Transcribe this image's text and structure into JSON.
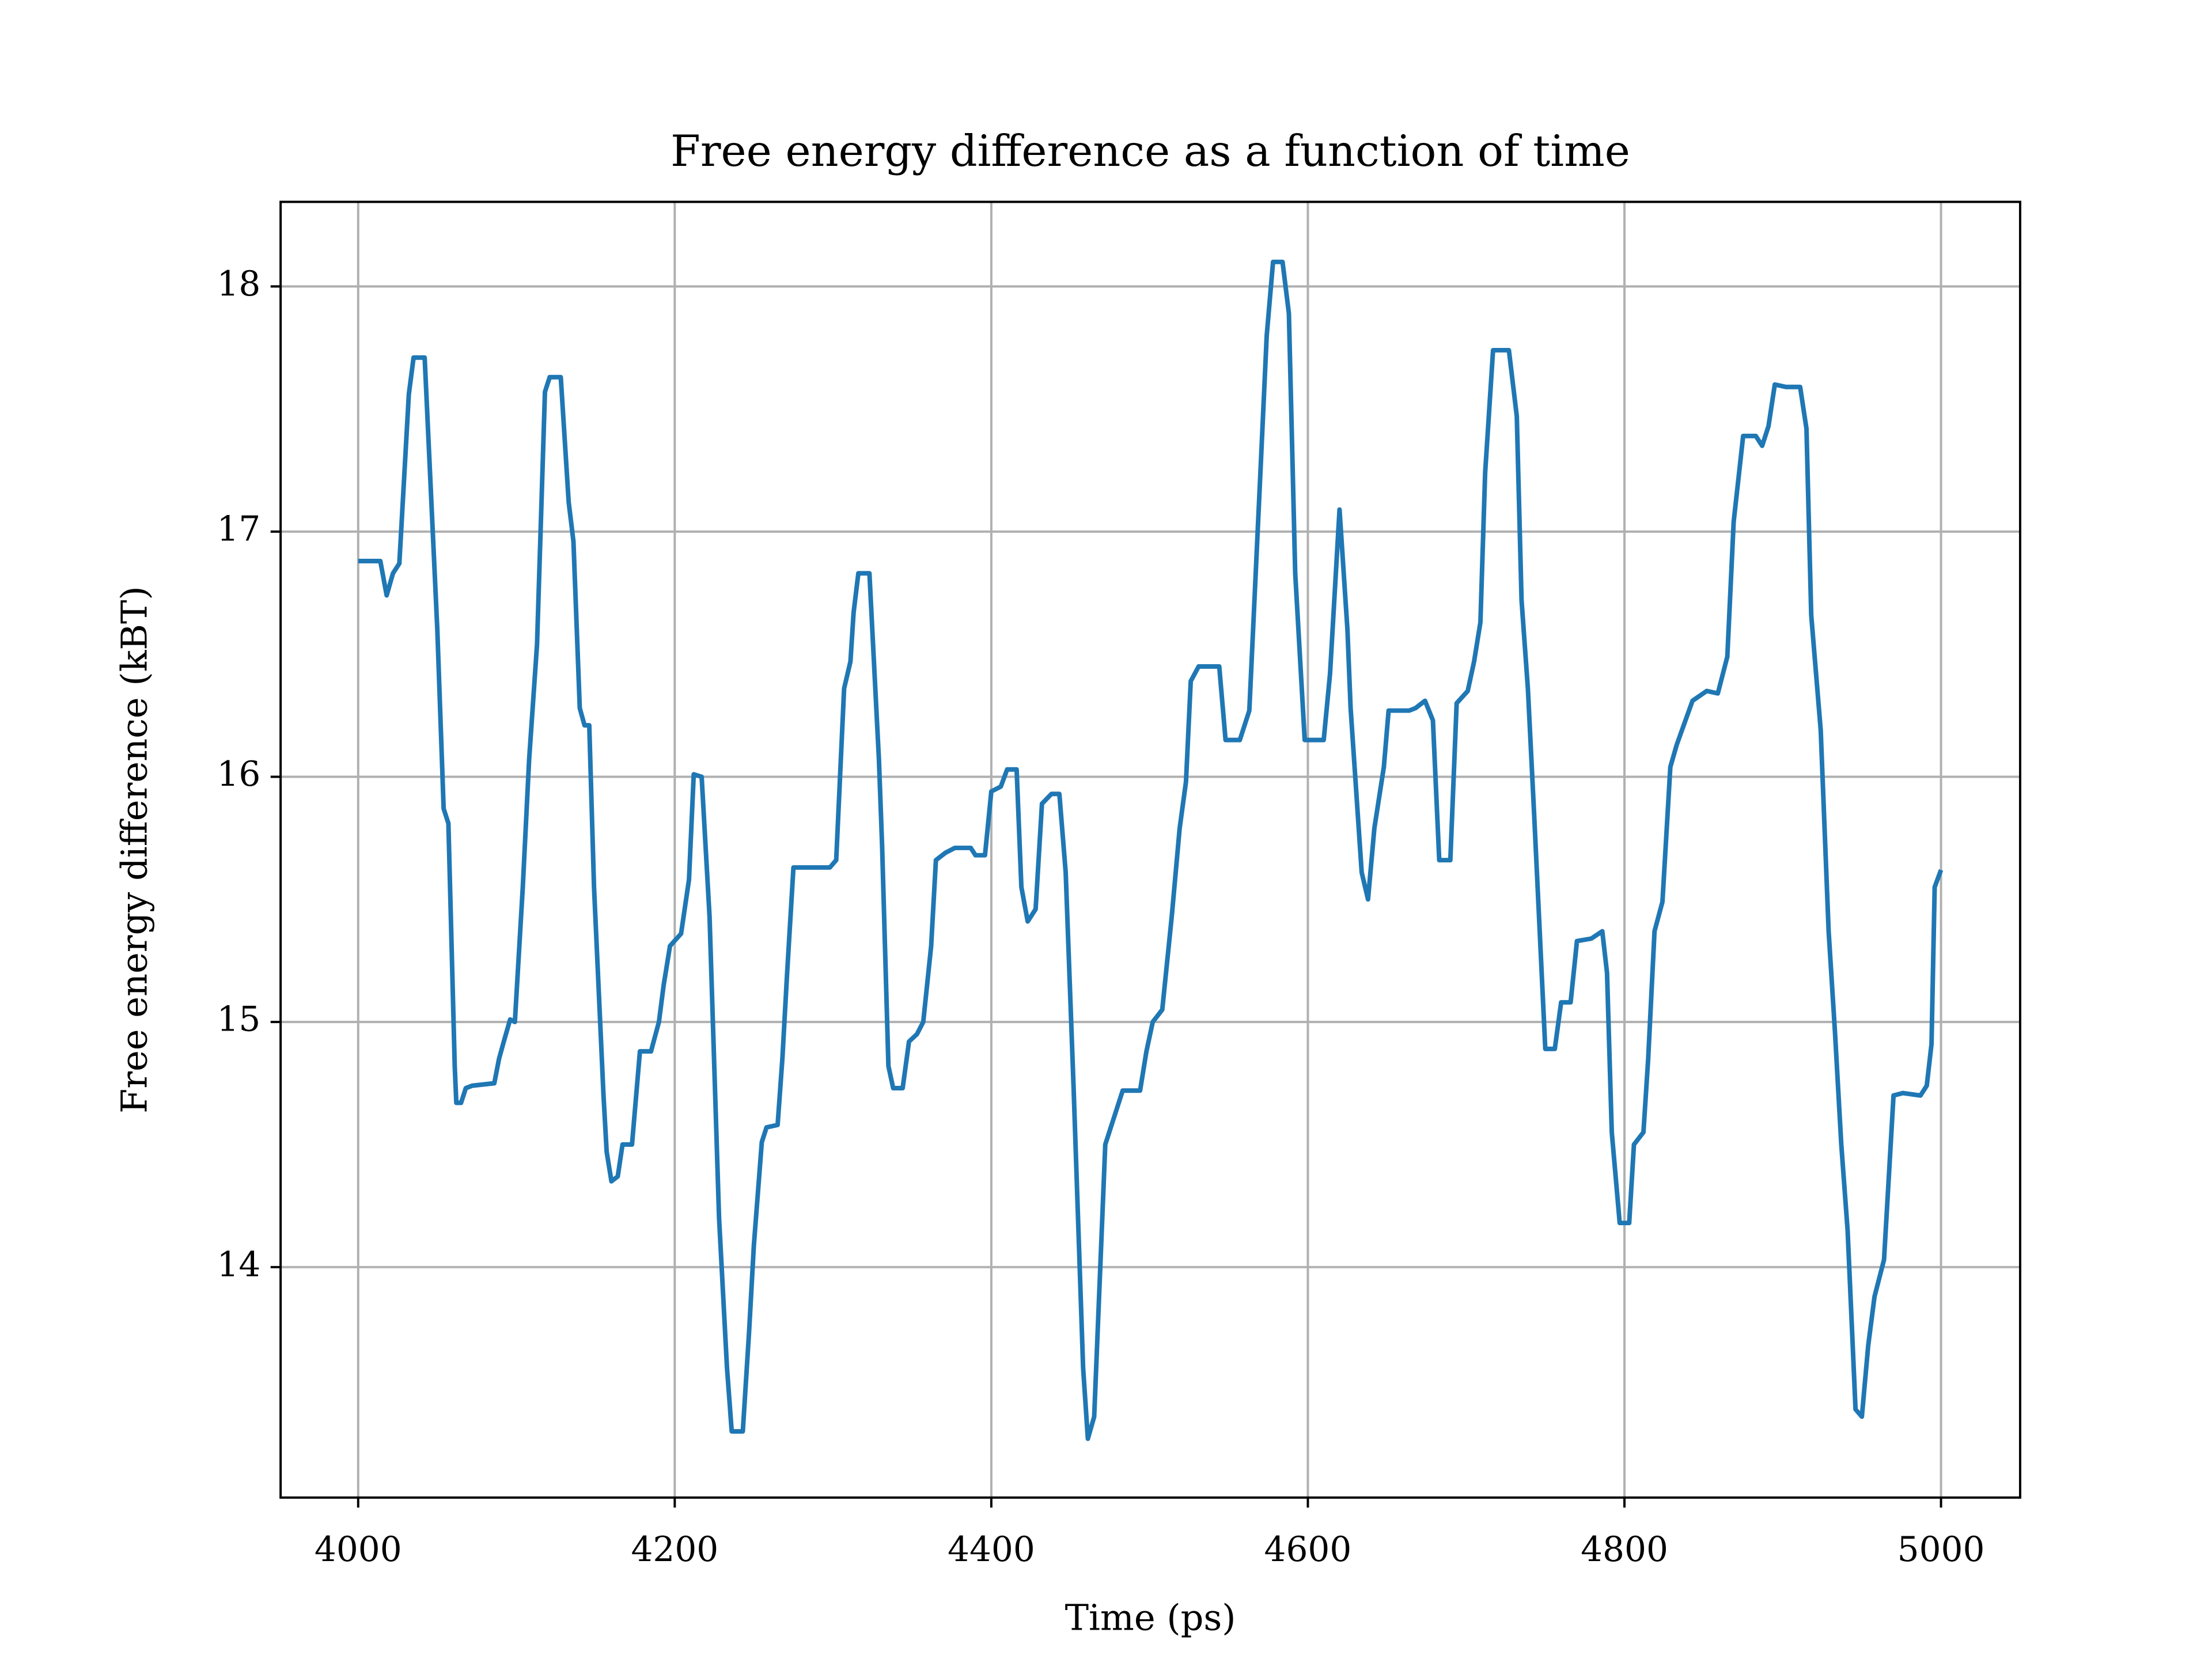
{
  "chart_data": {
    "type": "line",
    "title": "Free energy difference as a function of time",
    "xlabel": "Time (ps)",
    "ylabel": "Free energy difference (kBT)",
    "color": "#1f77b4",
    "grid": true,
    "xlim": [
      3951,
      5050
    ],
    "ylim": [
      13.06,
      18.345
    ],
    "xticks": [
      4000,
      4200,
      4400,
      4600,
      4800,
      5000
    ],
    "yticks": [
      14,
      15,
      16,
      17,
      18
    ],
    "x": [
      4000,
      4014,
      4018,
      4022,
      4026,
      4032,
      4035,
      4042,
      4050,
      4054,
      4057,
      4061,
      4062,
      4065,
      4068,
      4072,
      4086,
      4089,
      4092,
      4096,
      4099,
      4104,
      4108,
      4113,
      4118,
      4121,
      4128,
      4133,
      4136,
      4140,
      4143,
      4146,
      4149,
      4155,
      4157,
      4160,
      4164,
      4167,
      4173,
      4178,
      4185,
      4190,
      4193,
      4197,
      4204,
      4209,
      4212,
      4217,
      4222,
      4228,
      4233,
      4236,
      4243,
      4247,
      4250,
      4255,
      4258,
      4265,
      4268,
      4271,
      4275,
      4298,
      4302,
      4307,
      4311,
      4313,
      4316,
      4323,
      4329,
      4331,
      4335,
      4338,
      4344,
      4348,
      4353,
      4357,
      4362,
      4365,
      4371,
      4377,
      4387,
      4390,
      4396,
      4400,
      4406,
      4410,
      4416,
      4419,
      4423,
      4428,
      4432,
      4438,
      4443,
      4447,
      4452,
      4458,
      4461,
      4465,
      4472,
      4474,
      4479,
      4483,
      4494,
      4498,
      4502,
      4508,
      4514,
      4519,
      4523,
      4526,
      4531,
      4544,
      4548,
      4557,
      4563,
      4570,
      4574,
      4578,
      4584,
      4588,
      4592,
      4598,
      4610,
      4614,
      4620,
      4625,
      4627,
      4634,
      4638,
      4642,
      4648,
      4651,
      4664,
      4668,
      4674,
      4679,
      4683,
      4690,
      4694,
      4701,
      4705,
      4709,
      4712,
      4717,
      4727,
      4732,
      4735,
      4739,
      4743,
      4750,
      4756,
      4760,
      4766,
      4770,
      4779,
      4786,
      4789,
      4792,
      4797,
      4803,
      4806,
      4812,
      4815,
      4819,
      4824,
      4829,
      4833,
      4838,
      4843,
      4852,
      4859,
      4865,
      4869,
      4875,
      4883,
      4887,
      4891,
      4895,
      4902,
      4911,
      4915,
      4918,
      4924,
      4929,
      4933,
      4937,
      4941,
      4946,
      4950,
      4954,
      4958,
      4964,
      4970,
      4976,
      4987,
      4991,
      4994,
      4996,
      5000
    ],
    "values": [
      16.88,
      16.88,
      16.74,
      16.83,
      16.87,
      17.56,
      17.71,
      17.71,
      16.6,
      15.87,
      15.81,
      14.82,
      14.67,
      14.67,
      14.73,
      14.74,
      14.75,
      14.85,
      14.92,
      15.01,
      15.0,
      15.55,
      16.07,
      16.54,
      17.57,
      17.63,
      17.63,
      17.12,
      16.96,
      16.28,
      16.21,
      16.21,
      15.55,
      14.7,
      14.47,
      14.35,
      14.37,
      14.5,
      14.5,
      14.88,
      14.88,
      15.0,
      15.15,
      15.31,
      15.36,
      15.58,
      16.01,
      16.0,
      15.43,
      14.2,
      13.59,
      13.33,
      13.33,
      13.74,
      14.09,
      14.51,
      14.57,
      14.58,
      14.85,
      15.2,
      15.63,
      15.63,
      15.66,
      16.36,
      16.47,
      16.67,
      16.83,
      16.83,
      16.07,
      15.72,
      14.82,
      14.73,
      14.73,
      14.92,
      14.95,
      15.0,
      15.31,
      15.66,
      15.69,
      15.71,
      15.71,
      15.68,
      15.68,
      15.94,
      15.96,
      16.03,
      16.03,
      15.55,
      15.41,
      15.46,
      15.89,
      15.93,
      15.93,
      15.61,
      14.73,
      13.59,
      13.3,
      13.39,
      14.5,
      14.54,
      14.64,
      14.72,
      14.72,
      14.88,
      15.0,
      15.05,
      15.43,
      15.79,
      15.98,
      16.39,
      16.45,
      16.45,
      16.15,
      16.15,
      16.27,
      17.24,
      17.8,
      18.1,
      18.1,
      17.89,
      16.83,
      16.15,
      16.15,
      16.42,
      17.09,
      16.6,
      16.28,
      15.61,
      15.5,
      15.79,
      16.04,
      16.27,
      16.27,
      16.28,
      16.31,
      16.23,
      15.66,
      15.66,
      16.3,
      16.35,
      16.47,
      16.63,
      17.24,
      17.74,
      17.74,
      17.47,
      16.72,
      16.36,
      15.84,
      14.89,
      14.89,
      15.08,
      15.08,
      15.33,
      15.34,
      15.37,
      15.2,
      14.55,
      14.18,
      14.18,
      14.5,
      14.55,
      14.85,
      15.37,
      15.49,
      16.04,
      16.13,
      16.22,
      16.31,
      16.35,
      16.34,
      16.49,
      17.04,
      17.39,
      17.39,
      17.35,
      17.43,
      17.6,
      17.59,
      17.59,
      17.42,
      16.66,
      16.19,
      15.37,
      14.96,
      14.5,
      14.15,
      13.42,
      13.39,
      13.68,
      13.88,
      14.03,
      14.7,
      14.71,
      14.7,
      14.74,
      14.91,
      15.55,
      15.62
    ]
  }
}
